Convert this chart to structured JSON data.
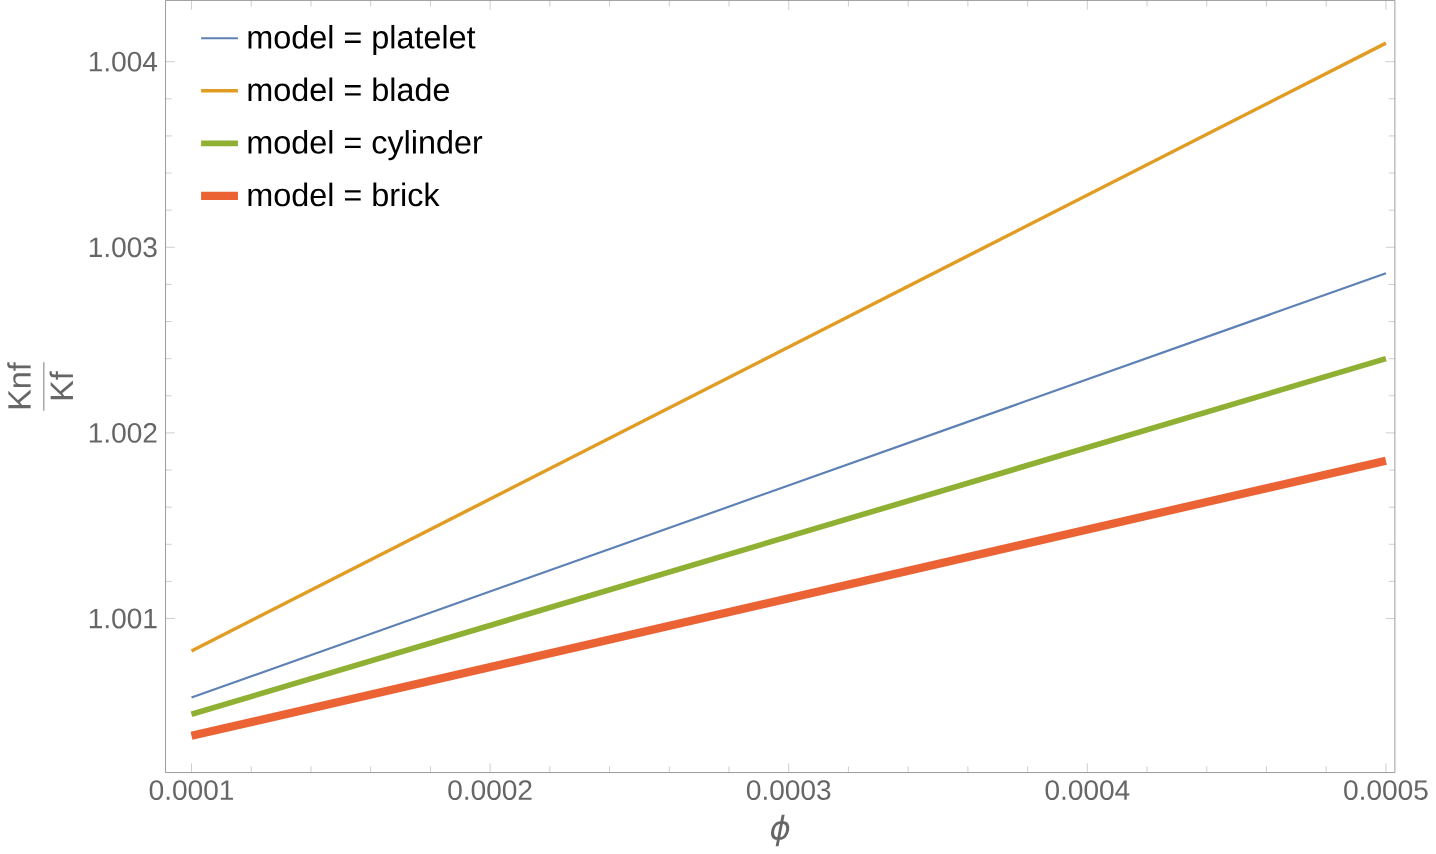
{
  "chart_data": {
    "type": "line",
    "xlabel": "ϕ",
    "ylabel": "\\frac{\\mathrm{Knf}}{\\mathrm{Kf}}",
    "x": [
      0.0001,
      0.0005
    ],
    "series": [
      {
        "name": "model = platelet",
        "color": "#5e81b5",
        "values": [
          1.000574,
          1.00286
        ]
      },
      {
        "name": "model = blade",
        "color": "#e19c24",
        "values": [
          1.000825,
          1.0041
        ]
      },
      {
        "name": "model = cylinder",
        "color": "#8fb032",
        "values": [
          1.000484,
          1.0024
        ]
      },
      {
        "name": "model = brick",
        "color": "#eb6235",
        "values": [
          1.000368,
          1.00185
        ]
      }
    ],
    "xlim": [
      9.13e-05,
      0.000503
    ],
    "ylim": [
      1.00017,
      1.00433
    ],
    "xticks": [
      0.0001,
      0.0002,
      0.0003,
      0.0004,
      0.0005
    ],
    "yticks": [
      1.001,
      1.002,
      1.003,
      1.004
    ],
    "grid": false,
    "legend": "top left",
    "marker": "none",
    "line_style": "solid"
  }
}
